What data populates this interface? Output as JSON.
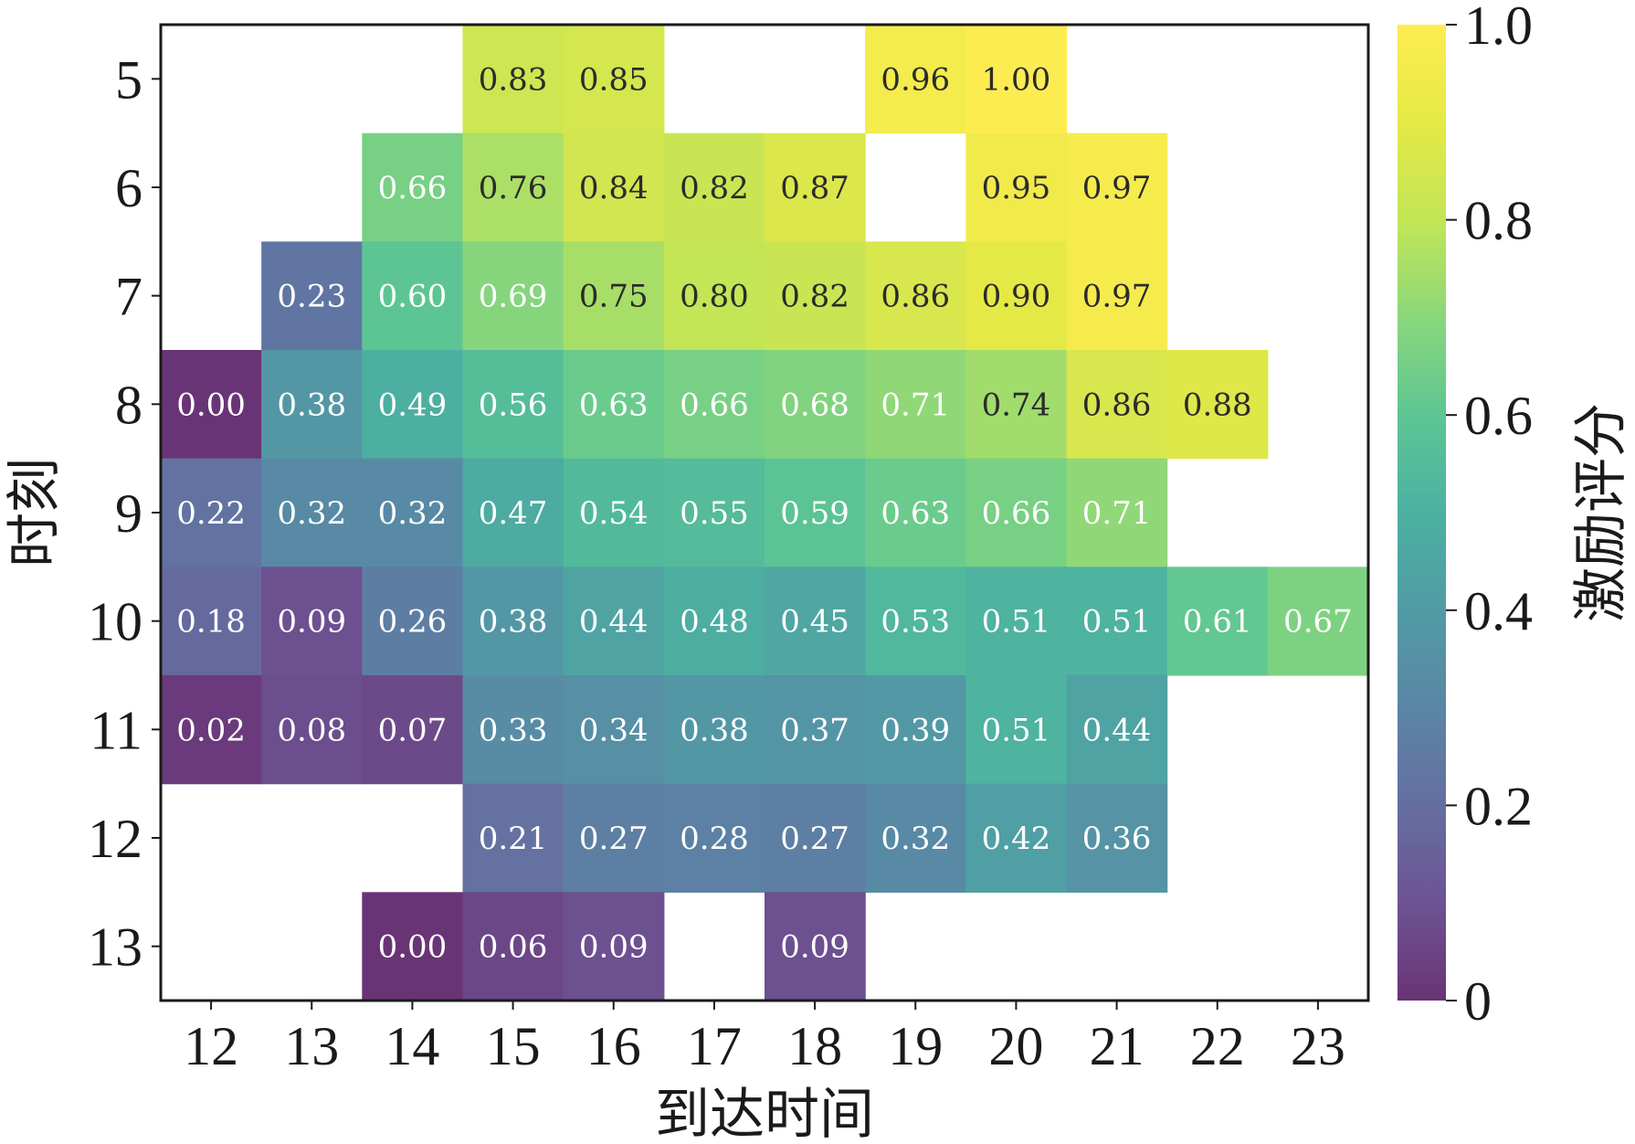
{
  "chart_data": {
    "type": "heatmap",
    "title": "",
    "xlabel": "到达时间",
    "ylabel": "时刻",
    "x_categories": [
      "12",
      "13",
      "14",
      "15",
      "16",
      "17",
      "18",
      "19",
      "20",
      "21",
      "22",
      "23"
    ],
    "y_categories": [
      "5",
      "6",
      "7",
      "8",
      "9",
      "10",
      "11",
      "12",
      "13"
    ],
    "values": [
      [
        null,
        null,
        null,
        0.83,
        0.85,
        null,
        null,
        0.96,
        1.0,
        null,
        null,
        null
      ],
      [
        null,
        null,
        0.66,
        0.76,
        0.84,
        0.82,
        0.87,
        null,
        0.95,
        0.97,
        null,
        null
      ],
      [
        null,
        0.23,
        0.6,
        0.69,
        0.75,
        0.8,
        0.82,
        0.86,
        0.9,
        0.97,
        null,
        null
      ],
      [
        0.0,
        0.38,
        0.49,
        0.56,
        0.63,
        0.66,
        0.68,
        0.71,
        0.74,
        0.86,
        0.88,
        null
      ],
      [
        0.22,
        0.32,
        0.32,
        0.47,
        0.54,
        0.55,
        0.59,
        0.63,
        0.66,
        0.71,
        null,
        null
      ],
      [
        0.18,
        0.09,
        0.26,
        0.38,
        0.44,
        0.48,
        0.45,
        0.53,
        0.51,
        0.51,
        0.61,
        0.67
      ],
      [
        0.02,
        0.08,
        0.07,
        0.33,
        0.34,
        0.38,
        0.37,
        0.39,
        0.51,
        0.44,
        null,
        null
      ],
      [
        null,
        null,
        null,
        0.21,
        0.27,
        0.28,
        0.27,
        0.32,
        0.42,
        0.36,
        null,
        null
      ],
      [
        null,
        null,
        0.0,
        0.06,
        0.09,
        null,
        0.09,
        null,
        null,
        null,
        null,
        null
      ]
    ],
    "value_labels": [
      [
        null,
        null,
        null,
        "0.83",
        "0.85",
        null,
        null,
        "0.96",
        "1.00",
        null,
        null,
        null
      ],
      [
        null,
        null,
        "0.66",
        "0.76",
        "0.84",
        "0.82",
        "0.87",
        null,
        "0.95",
        "0.97",
        null,
        null
      ],
      [
        null,
        "0.23",
        "0.60",
        "0.69",
        "0.75",
        "0.80",
        "0.82",
        "0.86",
        "0.90",
        "0.97",
        null,
        null
      ],
      [
        "0.00",
        "0.38",
        "0.49",
        "0.56",
        "0.63",
        "0.66",
        "0.68",
        "0.71",
        "0.74",
        "0.86",
        "0.88",
        null
      ],
      [
        "0.22",
        "0.32",
        "0.32",
        "0.47",
        "0.54",
        "0.55",
        "0.59",
        "0.63",
        "0.66",
        "0.71",
        null,
        null
      ],
      [
        "0.18",
        "0.09",
        "0.26",
        "0.38",
        "0.44",
        "0.48",
        "0.45",
        "0.53",
        "0.51",
        "0.51",
        "0.61",
        "0.67"
      ],
      [
        "0.02",
        "0.08",
        "0.07",
        "0.33",
        "0.34",
        "0.38",
        "0.37",
        "0.39",
        "0.51",
        "0.44",
        null,
        null
      ],
      [
        null,
        null,
        null,
        "0.21",
        "0.27",
        "0.28",
        "0.27",
        "0.32",
        "0.42",
        "0.36",
        null,
        null
      ],
      [
        null,
        null,
        "0.00",
        "0.06",
        "0.09",
        null,
        "0.09",
        null,
        null,
        null,
        null,
        null
      ]
    ],
    "colorbar": {
      "label": "激励评分",
      "range": [
        0,
        1
      ],
      "ticks": [
        0,
        0.2,
        0.4,
        0.6,
        0.8,
        1.0
      ],
      "tick_labels": [
        "0",
        "0.2",
        "0.4",
        "0.6",
        "0.8",
        "1.0"
      ],
      "colormap": "viridis",
      "alpha": 0.8
    },
    "grid": false,
    "colors": {
      "text_dark": "#2b2b2b",
      "text_light": "#ffffff",
      "frame": "#1a1a1a",
      "empty_cell": "#ffffff"
    }
  }
}
